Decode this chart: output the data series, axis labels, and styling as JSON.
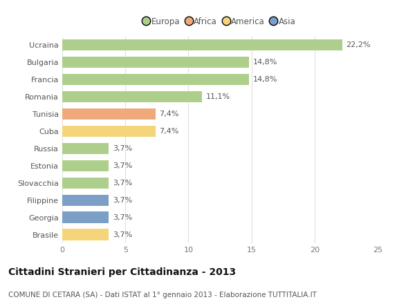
{
  "categories": [
    "Ucraina",
    "Bulgaria",
    "Francia",
    "Romania",
    "Tunisia",
    "Cuba",
    "Russia",
    "Estonia",
    "Slovacchia",
    "Filippine",
    "Georgia",
    "Brasile"
  ],
  "values": [
    22.2,
    14.8,
    14.8,
    11.1,
    7.4,
    7.4,
    3.7,
    3.7,
    3.7,
    3.7,
    3.7,
    3.7
  ],
  "labels": [
    "22,2%",
    "14,8%",
    "14,8%",
    "11,1%",
    "7,4%",
    "7,4%",
    "3,7%",
    "3,7%",
    "3,7%",
    "3,7%",
    "3,7%",
    "3,7%"
  ],
  "colors": [
    "#aecf8b",
    "#aecf8b",
    "#aecf8b",
    "#aecf8b",
    "#f0a97a",
    "#f5d57a",
    "#aecf8b",
    "#aecf8b",
    "#aecf8b",
    "#7b9fc7",
    "#7b9fc7",
    "#f5d57a"
  ],
  "legend_labels": [
    "Europa",
    "Africa",
    "America",
    "Asia"
  ],
  "legend_colors": [
    "#aecf8b",
    "#f0a97a",
    "#f5d57a",
    "#7b9fc7"
  ],
  "title": "Cittadini Stranieri per Cittadinanza - 2013",
  "subtitle": "COMUNE DI CETARA (SA) - Dati ISTAT al 1° gennaio 2013 - Elaborazione TUTTITALIA.IT",
  "xlim": [
    0,
    25
  ],
  "xticks": [
    0,
    5,
    10,
    15,
    20,
    25
  ],
  "background_color": "#ffffff",
  "bar_height": 0.65,
  "title_fontsize": 10,
  "subtitle_fontsize": 7.5,
  "label_fontsize": 8,
  "tick_fontsize": 8,
  "legend_fontsize": 8.5
}
